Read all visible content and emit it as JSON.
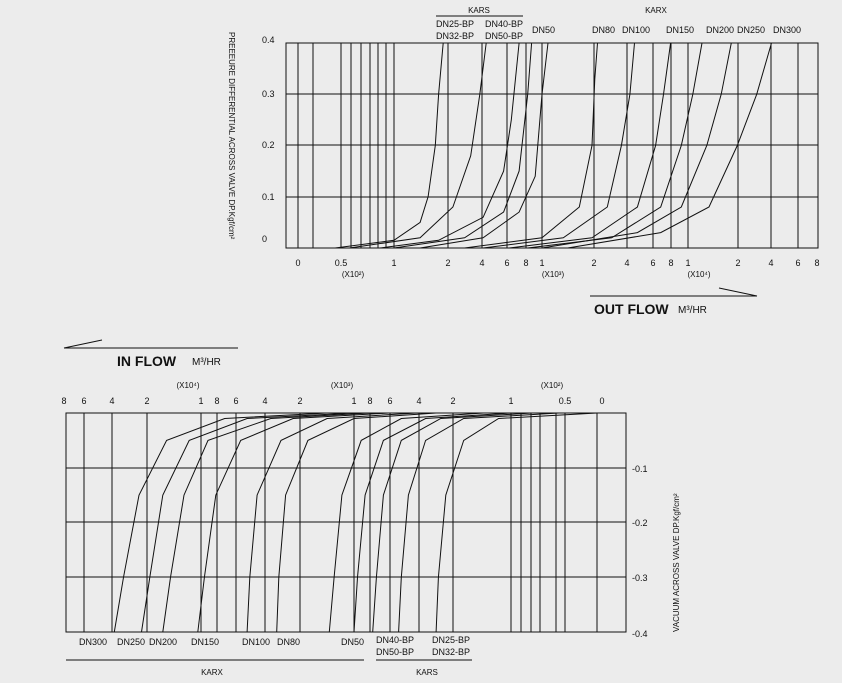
{
  "top": {
    "ylabel": "PREEEURE DIFFERENTIAL ACROSS VALVE DP.Kgf/cm²",
    "ytick_labels": [
      "0.4",
      "0.3",
      "0.2",
      "0.1",
      "0"
    ],
    "xtick_labels": [
      "0",
      "0.5",
      "1",
      "2",
      "4",
      "6",
      "8",
      "1",
      "2",
      "4",
      "6",
      "8",
      "1",
      "2",
      "4",
      "6",
      "8"
    ],
    "multipliers": [
      "(X10²)",
      "(X10³)",
      "(X10⁴)"
    ],
    "group_kars": "KARS",
    "group_karx": "KARX",
    "series_labels": [
      "DN25-BP",
      "DN32-BP",
      "DN40-BP",
      "DN50-BP",
      "DN50",
      "DN80",
      "DN100",
      "DN150",
      "DN200",
      "DN250",
      "DN300"
    ],
    "flow_title": "OUT FLOW",
    "flow_unit": "M³/HR"
  },
  "bottom": {
    "ylabel": "VACUUM ACROSS VALVE DP.Kgf/cm²",
    "ytick_labels": [
      "-0.1",
      "-0.2",
      "-0.3",
      "-0.4"
    ],
    "xtick_labels": [
      "8",
      "6",
      "4",
      "2",
      "1",
      "8",
      "6",
      "4",
      "2",
      "1",
      "8",
      "6",
      "4",
      "2",
      "1",
      "0.5",
      "0"
    ],
    "multipliers": [
      "(X10⁴)",
      "(X10³)",
      "(X10²)"
    ],
    "group_kars": "KARS",
    "group_karx": "KARX",
    "series_labels": [
      "DN300",
      "DN250",
      "DN200",
      "DN150",
      "DN100",
      "DN80",
      "DN50",
      "DN40-BP",
      "DN50-BP",
      "DN25-BP",
      "DN32-BP"
    ],
    "flow_title": "IN FLOW",
    "flow_unit": "M³/HR"
  },
  "chart_data": [
    {
      "type": "line",
      "title": "",
      "xlabel": "OUT FLOW M³/HR",
      "ylabel": "PREEEURE DIFFERENTIAL ACROSS VALVE DP.Kgf/cm²",
      "x_scale": "log",
      "ylim": [
        0,
        0.4
      ],
      "grid": true,
      "series": [
        {
          "name": "DN25-BP",
          "points": [
            [
              40,
              0
            ],
            [
              100,
              0.015
            ],
            [
              150,
              0.05
            ],
            [
              170,
              0.1
            ],
            [
              190,
              0.2
            ],
            [
              200,
              0.3
            ],
            [
              215,
              0.4
            ]
          ]
        },
        {
          "name": "DN32-BP",
          "points": [
            [
              50,
              0
            ],
            [
              150,
              0.02
            ],
            [
              250,
              0.08
            ],
            [
              330,
              0.18
            ],
            [
              380,
              0.3
            ],
            [
              420,
              0.4
            ]
          ]
        },
        {
          "name": "DN40-BP",
          "points": [
            [
              80,
              0
            ],
            [
              200,
              0.015
            ],
            [
              400,
              0.06
            ],
            [
              550,
              0.15
            ],
            [
              620,
              0.25
            ],
            [
              700,
              0.4
            ]
          ]
        },
        {
          "name": "DN50-BP",
          "points": [
            [
              100,
              0
            ],
            [
              300,
              0.02
            ],
            [
              550,
              0.07
            ],
            [
              700,
              0.15
            ],
            [
              800,
              0.3
            ],
            [
              850,
              0.4
            ]
          ]
        },
        {
          "name": "DN50",
          "points": [
            [
              150,
              0
            ],
            [
              400,
              0.02
            ],
            [
              700,
              0.07
            ],
            [
              900,
              0.14
            ],
            [
              1000,
              0.3
            ],
            [
              1100,
              0.4
            ]
          ]
        },
        {
          "name": "DN80",
          "points": [
            [
              300,
              0
            ],
            [
              1000,
              0.02
            ],
            [
              1800,
              0.08
            ],
            [
              2200,
              0.2
            ],
            [
              2300,
              0.33
            ],
            [
              2400,
              0.4
            ]
          ]
        },
        {
          "name": "DN100",
          "points": [
            [
              400,
              0
            ],
            [
              1400,
              0.02
            ],
            [
              2800,
              0.08
            ],
            [
              3500,
              0.2
            ],
            [
              4000,
              0.3
            ],
            [
              4300,
              0.4
            ]
          ]
        },
        {
          "name": "DN150",
          "points": [
            [
              600,
              0
            ],
            [
              2200,
              0.02
            ],
            [
              4500,
              0.08
            ],
            [
              6000,
              0.2
            ],
            [
              6800,
              0.3
            ],
            [
              7600,
              0.4
            ]
          ]
        },
        {
          "name": "DN200",
          "points": [
            [
              800,
              0
            ],
            [
              3000,
              0.02
            ],
            [
              6500,
              0.08
            ],
            [
              9000,
              0.2
            ],
            [
              10800,
              0.3
            ],
            [
              12500,
              0.4
            ]
          ]
        },
        {
          "name": "DN250",
          "points": [
            [
              1000,
              0
            ],
            [
              4500,
              0.03
            ],
            [
              9000,
              0.08
            ],
            [
              13500,
              0.2
            ],
            [
              17000,
              0.3
            ],
            [
              20000,
              0.4
            ]
          ]
        },
        {
          "name": "DN300",
          "points": [
            [
              1500,
              0
            ],
            [
              6500,
              0.03
            ],
            [
              14000,
              0.08
            ],
            [
              22000,
              0.2
            ],
            [
              30000,
              0.3
            ],
            [
              38000,
              0.4
            ]
          ]
        }
      ]
    },
    {
      "type": "line",
      "title": "",
      "xlabel": "IN FLOW M³/HR",
      "ylabel": "VACUUM ACROSS VALVE DP.Kgf/cm²",
      "x_scale": "log",
      "ylim": [
        -0.4,
        0
      ],
      "grid": true,
      "series": [
        {
          "name": "DN25-BP",
          "points": [
            [
              40,
              0
            ],
            [
              120,
              -0.01
            ],
            [
              200,
              -0.05
            ],
            [
              260,
              -0.15
            ],
            [
              290,
              -0.3
            ],
            [
              300,
              -0.4
            ]
          ]
        },
        {
          "name": "DN32-BP",
          "points": [
            [
              60,
              0
            ],
            [
              200,
              -0.01
            ],
            [
              350,
              -0.05
            ],
            [
              450,
              -0.15
            ],
            [
              500,
              -0.3
            ],
            [
              520,
              -0.4
            ]
          ]
        },
        {
          "name": "DN40-BP",
          "points": [
            [
              80,
              0
            ],
            [
              280,
              -0.01
            ],
            [
              500,
              -0.05
            ],
            [
              650,
              -0.15
            ],
            [
              720,
              -0.3
            ],
            [
              760,
              -0.4
            ]
          ]
        },
        {
          "name": "DN50-BP",
          "points": [
            [
              100,
              0
            ],
            [
              350,
              -0.01
            ],
            [
              650,
              -0.05
            ],
            [
              850,
              -0.15
            ],
            [
              950,
              -0.3
            ],
            [
              1000,
              -0.4
            ]
          ]
        },
        {
          "name": "DN50",
          "points": [
            [
              150,
              0
            ],
            [
              500,
              -0.01
            ],
            [
              900,
              -0.05
            ],
            [
              1200,
              -0.15
            ],
            [
              1350,
              -0.3
            ],
            [
              1450,
              -0.4
            ]
          ]
        },
        {
          "name": "DN80",
          "points": [
            [
              300,
              0
            ],
            [
              1000,
              -0.01
            ],
            [
              2000,
              -0.05
            ],
            [
              2800,
              -0.15
            ],
            [
              3100,
              -0.3
            ],
            [
              3200,
              -0.4
            ]
          ]
        },
        {
          "name": "DN100",
          "points": [
            [
              400,
              0
            ],
            [
              1500,
              -0.01
            ],
            [
              3000,
              -0.05
            ],
            [
              4300,
              -0.15
            ],
            [
              4800,
              -0.3
            ],
            [
              5000,
              -0.4
            ]
          ]
        },
        {
          "name": "DN150",
          "points": [
            [
              600,
              0
            ],
            [
              2500,
              -0.01
            ],
            [
              5500,
              -0.05
            ],
            [
              8000,
              -0.15
            ],
            [
              9500,
              -0.3
            ],
            [
              10500,
              -0.4
            ]
          ]
        },
        {
          "name": "DN200",
          "points": [
            [
              800,
              0
            ],
            [
              3500,
              -0.01
            ],
            [
              9000,
              -0.05
            ],
            [
              13000,
              -0.15
            ],
            [
              16000,
              -0.3
            ],
            [
              18000,
              -0.4
            ]
          ]
        },
        {
          "name": "DN250",
          "points": [
            [
              1000,
              0
            ],
            [
              5000,
              -0.01
            ],
            [
              12000,
              -0.05
            ],
            [
              18000,
              -0.15
            ],
            [
              22000,
              -0.3
            ],
            [
              25000,
              -0.4
            ]
          ]
        },
        {
          "name": "DN300",
          "points": [
            [
              1500,
              0
            ],
            [
              7000,
              -0.01
            ],
            [
              17000,
              -0.05
            ],
            [
              26000,
              -0.15
            ],
            [
              33000,
              -0.3
            ],
            [
              38000,
              -0.4
            ]
          ]
        }
      ]
    }
  ]
}
